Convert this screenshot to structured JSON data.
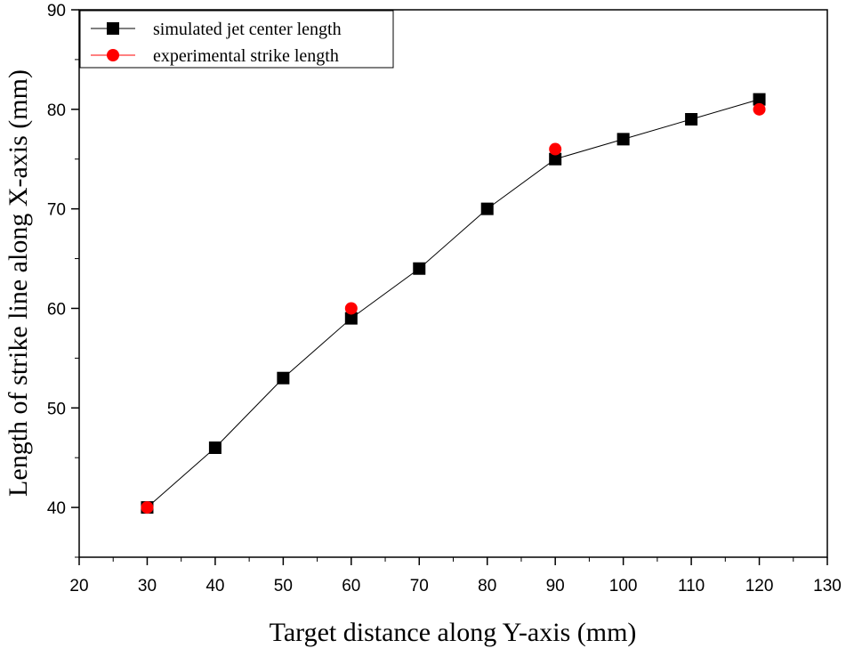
{
  "chart_data": {
    "type": "scatter",
    "title": "",
    "xlabel": "Target distance along Y-axis (mm)",
    "ylabel": "Length of strike line along  X-axis (mm)",
    "xlim": [
      20,
      130
    ],
    "ylim": [
      35,
      90
    ],
    "xticks": [
      20,
      30,
      40,
      50,
      60,
      70,
      80,
      90,
      100,
      110,
      120,
      130
    ],
    "yticks": [
      40,
      50,
      60,
      70,
      80,
      90
    ],
    "legend_position": "top-left",
    "series": [
      {
        "name": "simulated jet center length",
        "marker": "square",
        "line": true,
        "color": "#000000",
        "x": [
          30,
          40,
          50,
          60,
          70,
          80,
          90,
          100,
          110,
          120
        ],
        "y": [
          40,
          46,
          53,
          59,
          64,
          70,
          75,
          77,
          79,
          81
        ]
      },
      {
        "name": "experimental strike length",
        "marker": "circle",
        "line": false,
        "color": "#ff0000",
        "x": [
          30,
          60,
          90,
          120
        ],
        "y": [
          40,
          60,
          76,
          80
        ]
      }
    ]
  }
}
